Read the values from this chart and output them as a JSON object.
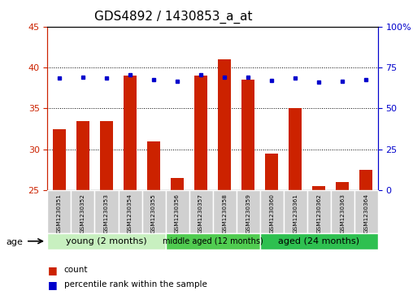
{
  "title": "GDS4892 / 1430853_a_at",
  "samples": [
    "GSM1230351",
    "GSM1230352",
    "GSM1230353",
    "GSM1230354",
    "GSM1230355",
    "GSM1230356",
    "GSM1230357",
    "GSM1230358",
    "GSM1230359",
    "GSM1230360",
    "GSM1230361",
    "GSM1230362",
    "GSM1230363",
    "GSM1230364"
  ],
  "counts": [
    32.5,
    33.5,
    33.5,
    39.0,
    31.0,
    26.5,
    39.0,
    41.0,
    38.5,
    29.5,
    35.0,
    25.5,
    26.0,
    27.5
  ],
  "percentile_ranks": [
    68.5,
    69.0,
    68.5,
    70.5,
    67.5,
    66.5,
    70.5,
    69.0,
    69.0,
    67.0,
    68.5,
    66.0,
    66.5,
    67.5
  ],
  "ylim_left": [
    25,
    45
  ],
  "ylim_right": [
    0,
    100
  ],
  "yticks_left": [
    25,
    30,
    35,
    40,
    45
  ],
  "yticks_right": [
    0,
    25,
    50,
    75,
    100
  ],
  "groups": [
    {
      "label": "young (2 months)",
      "start": 0,
      "end": 5,
      "color": "#c8f0c0"
    },
    {
      "label": "middle aged (12 months)",
      "start": 5,
      "end": 9,
      "color": "#50d050"
    },
    {
      "label": "aged (24 months)",
      "start": 9,
      "end": 14,
      "color": "#30cc50"
    }
  ],
  "bar_color": "#cc2200",
  "dot_color": "#0000cc",
  "left_axis_color": "#cc2200",
  "right_axis_color": "#0000cc",
  "bar_bottom": 25,
  "title_fontsize": 11,
  "tick_fontsize": 8,
  "sample_box_color": "#d0d0d0",
  "plot_bg": "#ffffff"
}
